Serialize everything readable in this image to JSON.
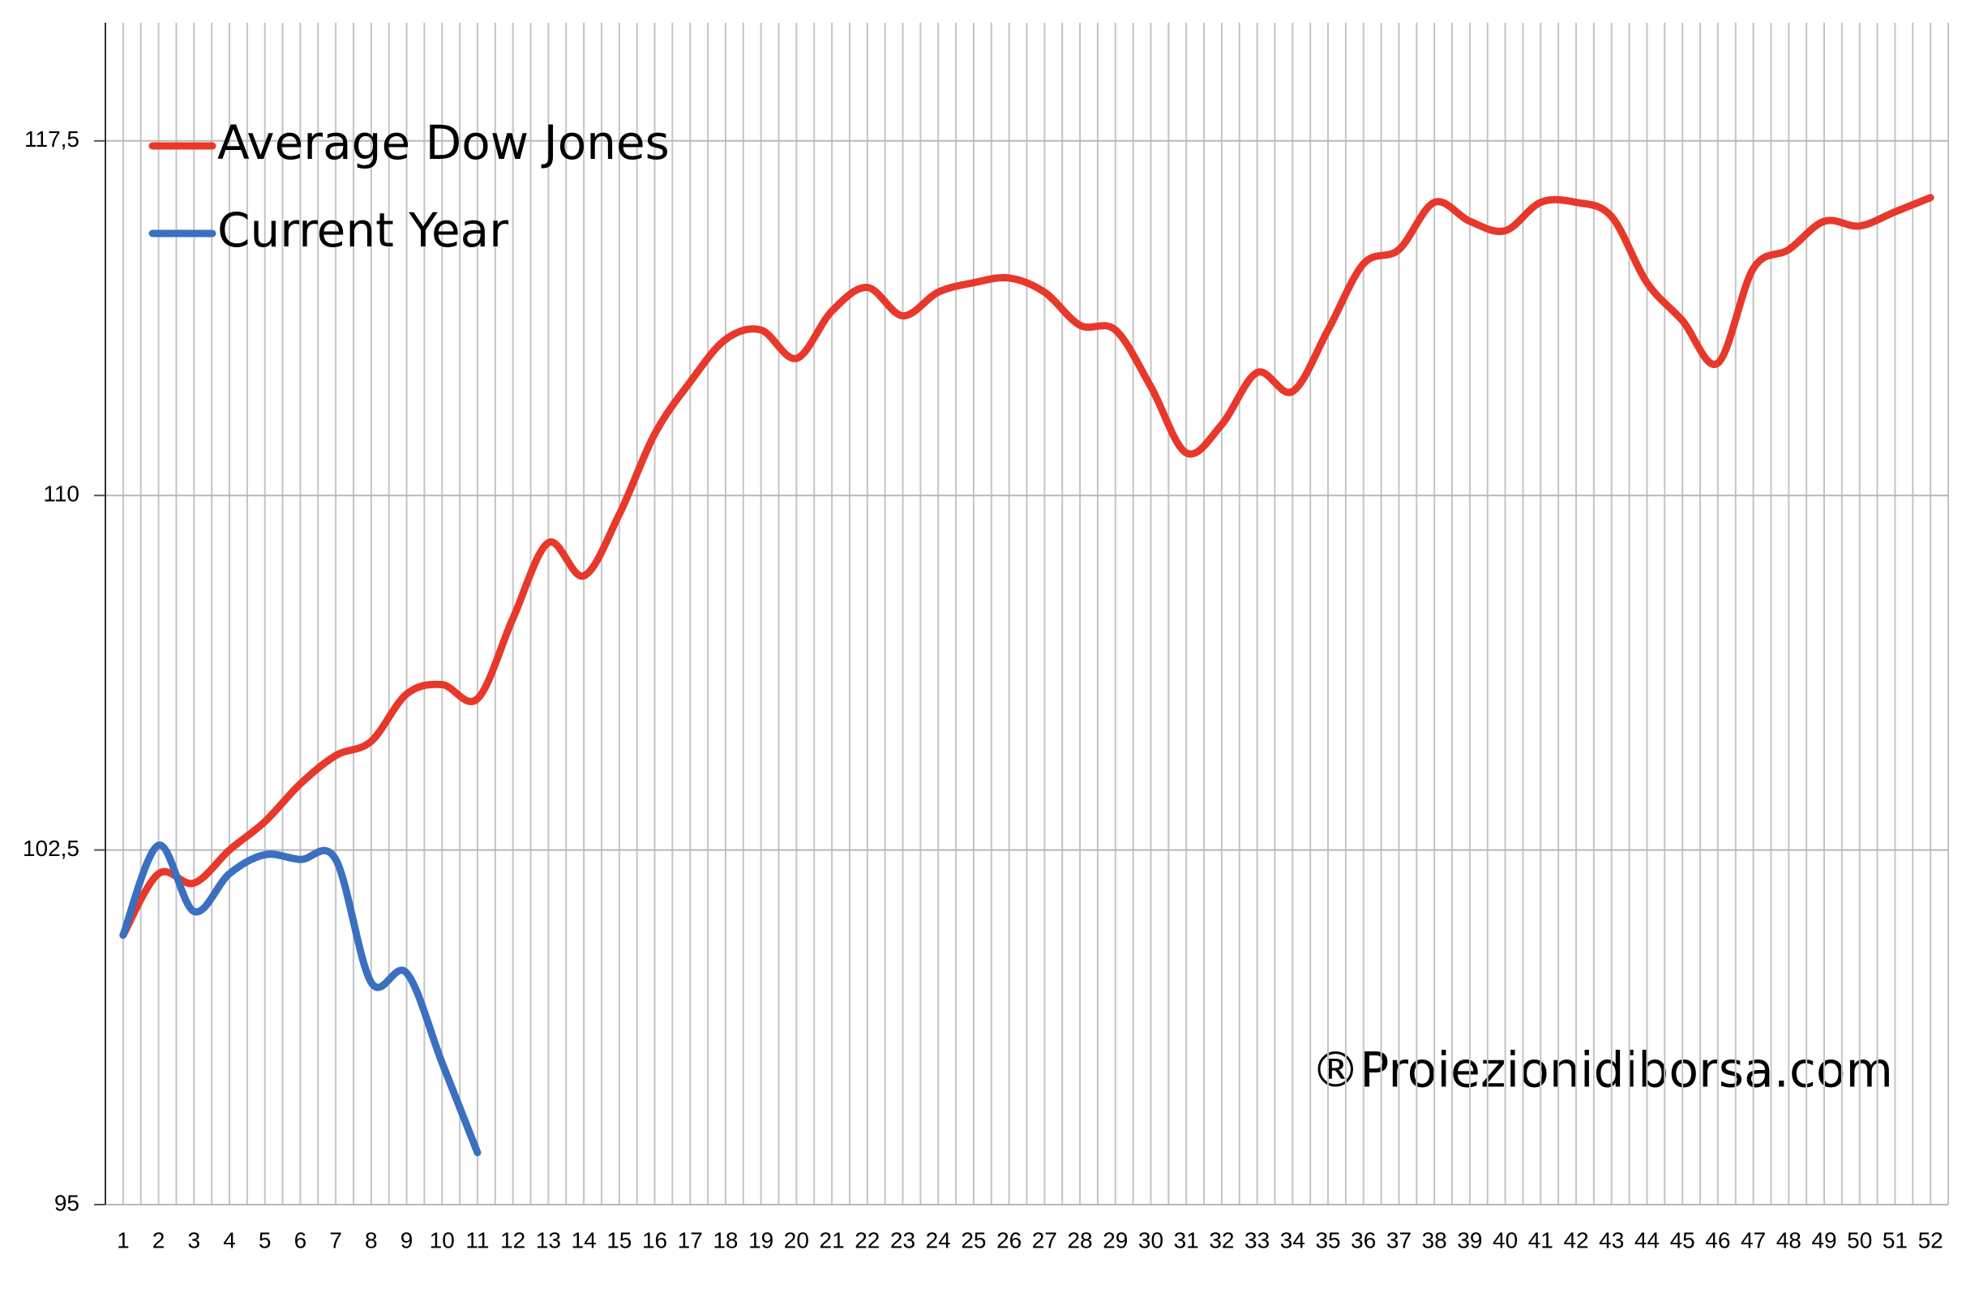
{
  "chart_data": {
    "type": "line",
    "categories": [
      "1",
      "2",
      "3",
      "4",
      "5",
      "6",
      "7",
      "8",
      "9",
      "10",
      "11",
      "12",
      "13",
      "14",
      "15",
      "16",
      "17",
      "18",
      "19",
      "20",
      "21",
      "22",
      "23",
      "24",
      "25",
      "26",
      "27",
      "28",
      "29",
      "30",
      "31",
      "32",
      "33",
      "34",
      "35",
      "36",
      "37",
      "38",
      "39",
      "40",
      "41",
      "42",
      "43",
      "44",
      "45",
      "46",
      "47",
      "48",
      "49",
      "50",
      "51",
      "52"
    ],
    "series": [
      {
        "name": "Average Dow Jones",
        "color": "#e8382b",
        "values": [
          100.7,
          102.0,
          101.8,
          102.5,
          103.1,
          103.9,
          104.5,
          104.8,
          105.8,
          106.0,
          105.7,
          107.4,
          109.0,
          108.3,
          109.6,
          111.3,
          112.4,
          113.3,
          113.5,
          112.9,
          113.9,
          114.4,
          113.8,
          114.3,
          114.5,
          114.6,
          114.3,
          113.6,
          113.5,
          112.3,
          110.9,
          111.5,
          112.6,
          112.2,
          113.5,
          114.9,
          115.2,
          116.2,
          115.8,
          115.6,
          116.2,
          116.2,
          115.9,
          114.5,
          113.7,
          112.8,
          114.8,
          115.2,
          115.8,
          115.7,
          116.0,
          116.3
        ]
      },
      {
        "name": "Current Year",
        "color": "#3a70bf",
        "values": [
          100.7,
          102.6,
          101.2,
          102.0,
          102.4,
          102.3,
          102.3,
          99.7,
          99.9,
          98.0,
          96.1,
          null,
          null,
          null,
          null,
          null,
          null,
          null,
          null,
          null,
          null,
          null,
          null,
          null,
          null,
          null,
          null,
          null,
          null,
          null,
          null,
          null,
          null,
          null,
          null,
          null,
          null,
          null,
          null,
          null,
          null,
          null,
          null,
          null,
          null,
          null,
          null,
          null,
          null,
          null,
          null,
          null
        ]
      }
    ],
    "ylim": [
      95,
      120
    ],
    "yticks": [
      95,
      {
        "value": 102.5,
        "label": "102,5"
      },
      110,
      {
        "value": 117.5,
        "label": "117,5"
      }
    ],
    "grid": true,
    "smooth": true,
    "legend": "top-left",
    "annotation": "®Proiezionidiborsa.com"
  }
}
